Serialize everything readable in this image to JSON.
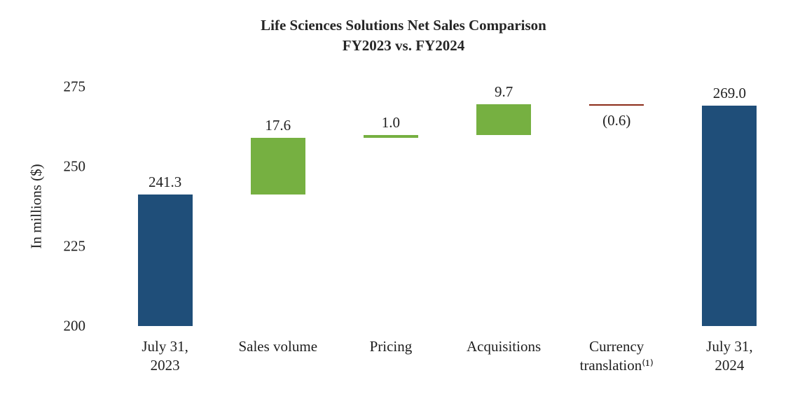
{
  "chart_data": {
    "type": "waterfall",
    "title": "Life Sciences Solutions Net Sales Comparison",
    "subtitle": "FY2023 vs. FY2024",
    "ylabel": "In millions ($)",
    "ylim": [
      200,
      275
    ],
    "yticks": [
      275,
      250,
      225,
      200
    ],
    "legend": "none",
    "grid": "off",
    "colors": {
      "total": "#1F4E79",
      "increase": "#76B041",
      "decrease": "#8B2B18"
    },
    "steps": [
      {
        "category_lines": [
          "July 31,",
          "2023"
        ],
        "kind": "total",
        "value": 241.3,
        "label": "241.3"
      },
      {
        "category_lines": [
          "Sales volume"
        ],
        "kind": "increase",
        "value": 17.6,
        "label": "17.6"
      },
      {
        "category_lines": [
          "Pricing"
        ],
        "kind": "increase",
        "value": 1.0,
        "label": "1.0"
      },
      {
        "category_lines": [
          "Acquisitions"
        ],
        "kind": "increase",
        "value": 9.7,
        "label": "9.7"
      },
      {
        "category_lines": [
          "Currency",
          "translation⁽¹⁾"
        ],
        "kind": "decrease",
        "value": -0.6,
        "label": "(0.6)"
      },
      {
        "category_lines": [
          "July 31,",
          "2024"
        ],
        "kind": "total",
        "value": 269.0,
        "label": "269.0"
      }
    ]
  }
}
